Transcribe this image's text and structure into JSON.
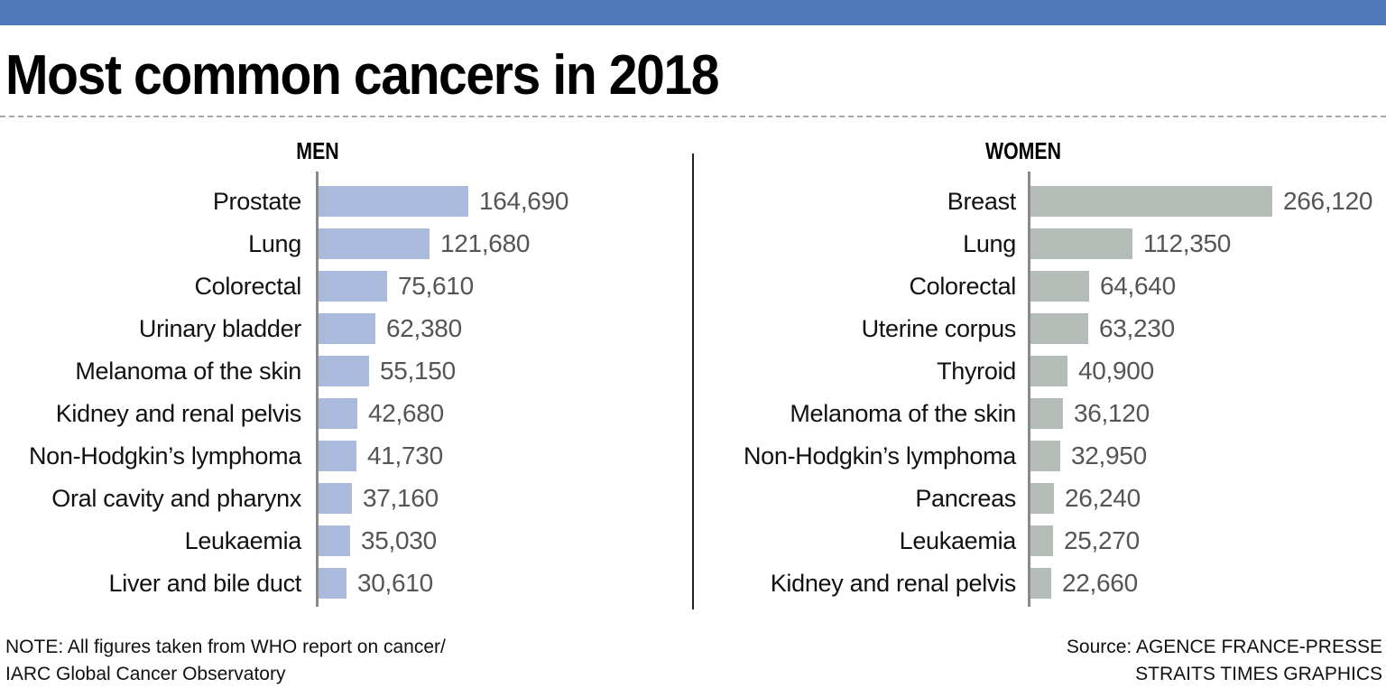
{
  "colors": {
    "header_bar": "#4f79bb",
    "men_bar": "#a9badd",
    "women_bar": "#b4bcb7",
    "value_text": "#555555",
    "axis": "#8a8a8a"
  },
  "chart_data": [
    {
      "type": "bar",
      "orientation": "horizontal",
      "title": "MEN",
      "xlabel": "",
      "ylabel": "",
      "xlim": [
        0,
        266120
      ],
      "grid": false,
      "categories": [
        "Prostate",
        "Lung",
        "Colorectal",
        "Urinary bladder",
        "Melanoma of the skin",
        "Kidney and renal pelvis",
        "Non-Hodgkin’s lymphoma",
        "Oral cavity and pharynx",
        "Leukaemia",
        "Liver and bile duct"
      ],
      "values": [
        164690,
        121680,
        75610,
        62380,
        55150,
        42680,
        41730,
        37160,
        35030,
        30610
      ],
      "value_labels": [
        "164,690",
        "121,680",
        "75,610",
        "62,380",
        "55,150",
        "42,680",
        "41,730",
        "37,160",
        "35,030",
        "30,610"
      ]
    },
    {
      "type": "bar",
      "orientation": "horizontal",
      "title": "WOMEN",
      "xlabel": "",
      "ylabel": "",
      "xlim": [
        0,
        266120
      ],
      "grid": false,
      "categories": [
        "Breast",
        "Lung",
        "Colorectal",
        "Uterine corpus",
        "Thyroid",
        "Melanoma of the skin",
        "Non-Hodgkin’s lymphoma",
        "Pancreas",
        "Leukaemia",
        "Kidney and renal pelvis"
      ],
      "values": [
        266120,
        112350,
        64640,
        63230,
        40900,
        36120,
        32950,
        26240,
        25270,
        22660
      ],
      "value_labels": [
        "266,120",
        "112,350",
        "64,640",
        "63,230",
        "40,900",
        "36,120",
        "32,950",
        "26,240",
        "25,270",
        "22,660"
      ]
    }
  ],
  "header": {
    "title": "Most common cancers in 2018"
  },
  "footer": {
    "note_line1": "NOTE: All figures taken from WHO report on cancer/",
    "note_line2": "IARC Global Cancer Observatory",
    "source_line1": "Source: AGENCE FRANCE-PRESSE",
    "source_line2": "STRAITS TIMES GRAPHICS"
  }
}
